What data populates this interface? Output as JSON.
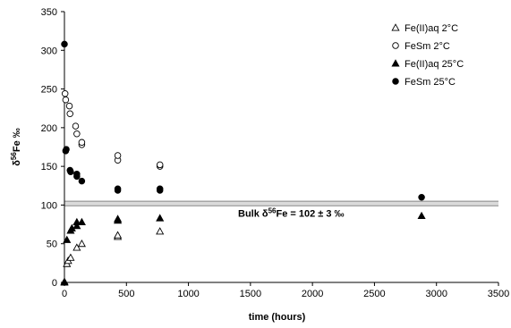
{
  "chart_data": {
    "type": "scatter",
    "title": "",
    "xlabel": "time (hours)",
    "ylabel_main": "δ",
    "ylabel_sup": "56",
    "ylabel_rest": "Fe ‰",
    "xlim": [
      0,
      3500
    ],
    "ylim": [
      0,
      350
    ],
    "x_ticks": [
      0,
      500,
      1000,
      1500,
      2000,
      2500,
      3000,
      3500
    ],
    "y_ticks": [
      0,
      50,
      100,
      150,
      200,
      250,
      300,
      350
    ],
    "grid": false,
    "legend_position": "top-right",
    "series": [
      {
        "name": "Fe(II)aq 2°C",
        "marker": "open-triangle",
        "points": [
          [
            0,
            1
          ],
          [
            20,
            24
          ],
          [
            30,
            28
          ],
          [
            50,
            32
          ],
          [
            100,
            45
          ],
          [
            140,
            50
          ],
          [
            430,
            59
          ],
          [
            430,
            61
          ],
          [
            770,
            66
          ]
        ]
      },
      {
        "name": "FeSm 2°C",
        "marker": "open-circle",
        "points": [
          [
            5,
            244
          ],
          [
            10,
            236
          ],
          [
            40,
            228
          ],
          [
            45,
            218
          ],
          [
            90,
            202
          ],
          [
            100,
            192
          ],
          [
            140,
            178
          ],
          [
            140,
            181
          ],
          [
            430,
            158
          ],
          [
            430,
            164
          ],
          [
            770,
            150
          ],
          [
            770,
            152
          ]
        ]
      },
      {
        "name": "Fe(II)aq 25°C",
        "marker": "filled-triangle",
        "points": [
          [
            0,
            0
          ],
          [
            20,
            55
          ],
          [
            50,
            67
          ],
          [
            60,
            70
          ],
          [
            100,
            78
          ],
          [
            100,
            73
          ],
          [
            140,
            78
          ],
          [
            430,
            80
          ],
          [
            430,
            82
          ],
          [
            770,
            83
          ],
          [
            2880,
            86
          ]
        ]
      },
      {
        "name": "FeSm 25°C",
        "marker": "filled-circle",
        "points": [
          [
            0,
            308
          ],
          [
            10,
            170
          ],
          [
            15,
            172
          ],
          [
            45,
            145
          ],
          [
            50,
            143
          ],
          [
            100,
            140
          ],
          [
            100,
            137
          ],
          [
            140,
            131
          ],
          [
            430,
            119
          ],
          [
            430,
            121
          ],
          [
            770,
            119
          ],
          [
            770,
            121
          ],
          [
            2880,
            110
          ]
        ]
      }
    ],
    "reference_band": {
      "low": 99,
      "high": 105,
      "color": "#bbbbbb"
    },
    "annotation": {
      "pre": "Bulk δ",
      "sup": "56",
      "post": "Fe = 102 ± 3 ‰",
      "x": 1400,
      "y": 85
    }
  }
}
